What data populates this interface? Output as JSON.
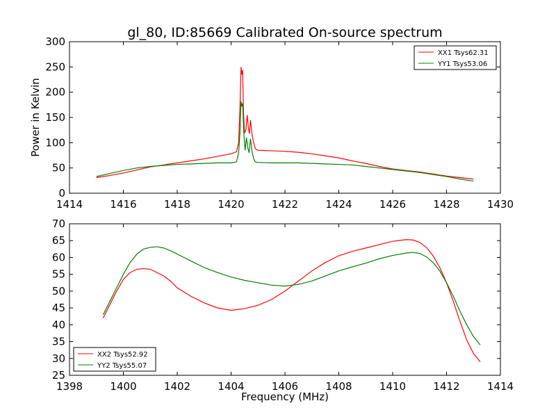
{
  "chart_data": [
    {
      "type": "line",
      "title": "gl_80, ID:85669 Calibrated On-source spectrum",
      "xlabel": "",
      "ylabel": "Power in Kelvin",
      "xlim": [
        1414,
        1430
      ],
      "ylim": [
        0,
        300
      ],
      "xticks": [
        1414,
        1416,
        1418,
        1420,
        1422,
        1424,
        1426,
        1428,
        1430
      ],
      "yticks": [
        0,
        50,
        100,
        150,
        200,
        250,
        300
      ],
      "legend_position": "top-right",
      "grid": false,
      "series": [
        {
          "name": "XX1 Tsys62.31",
          "color": "#ff0000",
          "points": [
            [
              1415.0,
              31
            ],
            [
              1415.5,
              35
            ],
            [
              1416.0,
              40
            ],
            [
              1416.5,
              46
            ],
            [
              1417.0,
              52
            ],
            [
              1417.5,
              56
            ],
            [
              1418.0,
              60
            ],
            [
              1418.5,
              64
            ],
            [
              1419.0,
              68
            ],
            [
              1419.5,
              73
            ],
            [
              1420.0,
              78
            ],
            [
              1420.2,
              82
            ],
            [
              1420.28,
              100
            ],
            [
              1420.33,
              170
            ],
            [
              1420.37,
              250
            ],
            [
              1420.4,
              235
            ],
            [
              1420.43,
              244
            ],
            [
              1420.46,
              160
            ],
            [
              1420.5,
              120
            ],
            [
              1420.55,
              125
            ],
            [
              1420.6,
              155
            ],
            [
              1420.64,
              130
            ],
            [
              1420.68,
              118
            ],
            [
              1420.72,
              145
            ],
            [
              1420.78,
              115
            ],
            [
              1420.84,
              100
            ],
            [
              1420.9,
              88
            ],
            [
              1421.0,
              85
            ],
            [
              1421.5,
              84
            ],
            [
              1422.0,
              83
            ],
            [
              1422.5,
              81
            ],
            [
              1423.0,
              78
            ],
            [
              1423.5,
              74
            ],
            [
              1424.0,
              70
            ],
            [
              1424.5,
              64
            ],
            [
              1425.0,
              59
            ],
            [
              1425.5,
              53
            ],
            [
              1426.0,
              48
            ],
            [
              1426.5,
              45
            ],
            [
              1427.0,
              42
            ],
            [
              1427.5,
              38
            ],
            [
              1428.0,
              34
            ],
            [
              1428.5,
              31
            ],
            [
              1429.0,
              28
            ]
          ]
        },
        {
          "name": "YY1 Tsys53.06",
          "color": "#008000",
          "points": [
            [
              1415.0,
              33
            ],
            [
              1415.5,
              39
            ],
            [
              1416.0,
              45
            ],
            [
              1416.5,
              50
            ],
            [
              1417.0,
              53
            ],
            [
              1417.5,
              55
            ],
            [
              1418.0,
              57
            ],
            [
              1418.5,
              58
            ],
            [
              1419.0,
              59
            ],
            [
              1419.5,
              60
            ],
            [
              1420.0,
              60
            ],
            [
              1420.2,
              62
            ],
            [
              1420.28,
              80
            ],
            [
              1420.33,
              120
            ],
            [
              1420.37,
              182
            ],
            [
              1420.4,
              172
            ],
            [
              1420.43,
              178
            ],
            [
              1420.47,
              120
            ],
            [
              1420.52,
              85
            ],
            [
              1420.57,
              110
            ],
            [
              1420.62,
              90
            ],
            [
              1420.67,
              80
            ],
            [
              1420.72,
              108
            ],
            [
              1420.78,
              82
            ],
            [
              1420.84,
              68
            ],
            [
              1420.9,
              62
            ],
            [
              1421.0,
              61
            ],
            [
              1421.5,
              60
            ],
            [
              1422.0,
              60
            ],
            [
              1422.5,
              60
            ],
            [
              1423.0,
              59
            ],
            [
              1423.5,
              58
            ],
            [
              1424.0,
              57
            ],
            [
              1424.5,
              56
            ],
            [
              1425.0,
              53
            ],
            [
              1425.5,
              50
            ],
            [
              1426.0,
              47
            ],
            [
              1426.5,
              44
            ],
            [
              1427.0,
              41
            ],
            [
              1427.5,
              37
            ],
            [
              1428.0,
              33
            ],
            [
              1428.5,
              28
            ],
            [
              1429.0,
              24
            ]
          ]
        }
      ]
    },
    {
      "type": "line",
      "title": "",
      "xlabel": "Frequency (MHz)",
      "ylabel": "",
      "xlim": [
        1398,
        1414
      ],
      "ylim": [
        25,
        70
      ],
      "xticks": [
        1398,
        1400,
        1402,
        1404,
        1406,
        1408,
        1410,
        1412,
        1414
      ],
      "yticks": [
        25,
        30,
        35,
        40,
        45,
        50,
        55,
        60,
        65,
        70
      ],
      "legend_position": "bottom-left",
      "grid": false,
      "series": [
        {
          "name": "XX2 Tsys52.92",
          "color": "#ff0000",
          "points": [
            [
              1399.25,
              42
            ],
            [
              1399.5,
              46
            ],
            [
              1399.75,
              50
            ],
            [
              1400.0,
              53.5
            ],
            [
              1400.25,
              55.5
            ],
            [
              1400.5,
              56.5
            ],
            [
              1400.75,
              56.7
            ],
            [
              1401.0,
              56.5
            ],
            [
              1401.25,
              55.5
            ],
            [
              1401.5,
              54.5
            ],
            [
              1401.75,
              53
            ],
            [
              1402.0,
              51
            ],
            [
              1402.5,
              48.5
            ],
            [
              1403.0,
              46.5
            ],
            [
              1403.5,
              45
            ],
            [
              1404.0,
              44.3
            ],
            [
              1404.5,
              44.8
            ],
            [
              1405.0,
              45.8
            ],
            [
              1405.5,
              47.5
            ],
            [
              1406.0,
              50
            ],
            [
              1406.5,
              53
            ],
            [
              1407.0,
              56
            ],
            [
              1407.5,
              58.5
            ],
            [
              1408.0,
              60.5
            ],
            [
              1408.5,
              61.8
            ],
            [
              1409.0,
              62.8
            ],
            [
              1409.5,
              63.8
            ],
            [
              1410.0,
              64.8
            ],
            [
              1410.5,
              65.3
            ],
            [
              1410.75,
              65.2
            ],
            [
              1411.0,
              64.5
            ],
            [
              1411.25,
              63
            ],
            [
              1411.5,
              60.5
            ],
            [
              1411.75,
              57
            ],
            [
              1412.0,
              52.5
            ],
            [
              1412.25,
              47
            ],
            [
              1412.5,
              41
            ],
            [
              1412.75,
              35.5
            ],
            [
              1413.0,
              31.5
            ],
            [
              1413.25,
              29
            ]
          ]
        },
        {
          "name": "YY2 Tsys55.07",
          "color": "#008000",
          "points": [
            [
              1399.25,
              43
            ],
            [
              1399.5,
              47
            ],
            [
              1399.75,
              51
            ],
            [
              1400.0,
              55
            ],
            [
              1400.25,
              58.5
            ],
            [
              1400.5,
              61
            ],
            [
              1400.75,
              62.5
            ],
            [
              1401.0,
              63
            ],
            [
              1401.25,
              63.2
            ],
            [
              1401.5,
              62.8
            ],
            [
              1401.75,
              62
            ],
            [
              1402.0,
              61
            ],
            [
              1402.5,
              59
            ],
            [
              1403.0,
              57
            ],
            [
              1403.5,
              55.5
            ],
            [
              1404.0,
              54.2
            ],
            [
              1404.5,
              53.2
            ],
            [
              1405.0,
              52.5
            ],
            [
              1405.5,
              51.8
            ],
            [
              1406.0,
              51.5
            ],
            [
              1406.5,
              52
            ],
            [
              1407.0,
              53
            ],
            [
              1407.5,
              54.5
            ],
            [
              1408.0,
              56
            ],
            [
              1408.5,
              57.2
            ],
            [
              1409.0,
              58.3
            ],
            [
              1409.5,
              59.6
            ],
            [
              1410.0,
              60.6
            ],
            [
              1410.5,
              61.3
            ],
            [
              1410.75,
              61.5
            ],
            [
              1411.0,
              61.2
            ],
            [
              1411.25,
              60.2
            ],
            [
              1411.5,
              58.5
            ],
            [
              1411.75,
              56
            ],
            [
              1412.0,
              52.5
            ],
            [
              1412.25,
              48.5
            ],
            [
              1412.5,
              44
            ],
            [
              1412.75,
              40
            ],
            [
              1413.0,
              36.5
            ],
            [
              1413.25,
              34
            ]
          ]
        }
      ]
    }
  ]
}
